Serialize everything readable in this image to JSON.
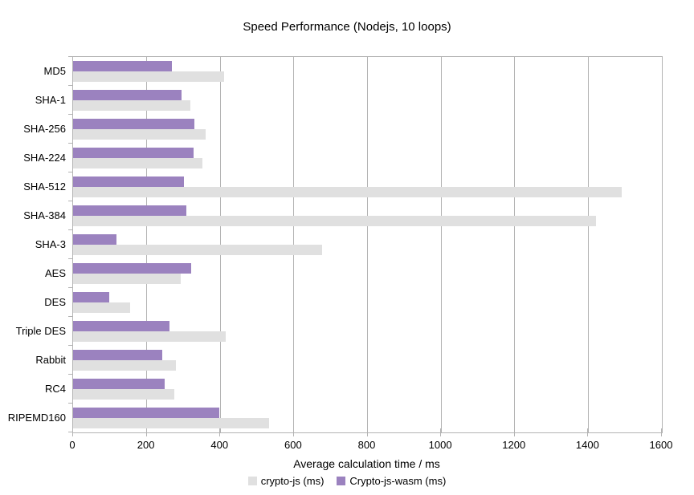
{
  "chart_data": {
    "type": "bar",
    "orientation": "horizontal",
    "title": "Speed Performance (Nodejs, 10 loops)",
    "xlabel": "Average calculation time / ms",
    "ylabel": "",
    "xlim": [
      0,
      1600
    ],
    "xticks": [
      0,
      200,
      400,
      600,
      800,
      1000,
      1200,
      1400,
      1600
    ],
    "grid": true,
    "legend_position": "bottom",
    "categories": [
      "MD5",
      "SHA-1",
      "SHA-256",
      "SHA-224",
      "SHA-512",
      "SHA-384",
      "SHA-3",
      "AES",
      "DES",
      "Triple DES",
      "Rabbit",
      "RC4",
      "RIPEMD160"
    ],
    "series": [
      {
        "name": "crypto-js (ms)",
        "color": "#e0e0e0",
        "values": [
          410,
          318,
          360,
          352,
          1490,
          1421,
          677,
          292,
          155,
          415,
          279,
          276,
          533
        ]
      },
      {
        "name": "Crypto-js-wasm (ms)",
        "color": "#9b82bf",
        "values": [
          268,
          294,
          329,
          328,
          301,
          308,
          118,
          320,
          98,
          263,
          242,
          248,
          398
        ]
      }
    ],
    "colors": {
      "gridline": "#b3b3b3",
      "plot_border": "#b3b3b3",
      "text": "#000000",
      "background": "#ffffff"
    }
  }
}
